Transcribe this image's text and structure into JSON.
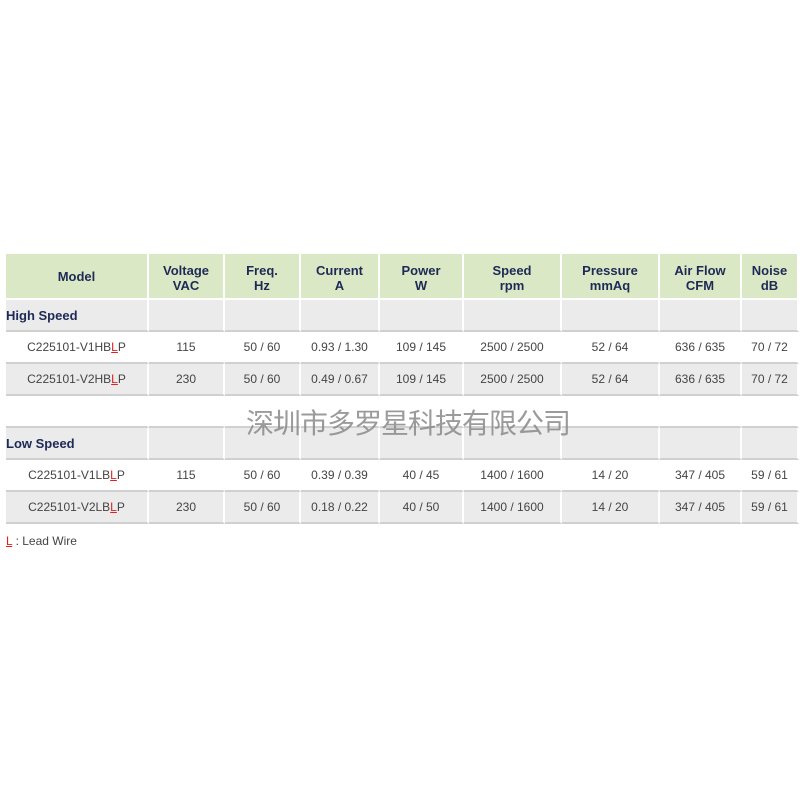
{
  "headers": [
    {
      "l1": "Model",
      "l2": ""
    },
    {
      "l1": "Voltage",
      "l2": "VAC"
    },
    {
      "l1": "Freq.",
      "l2": "Hz"
    },
    {
      "l1": "Current",
      "l2": "A"
    },
    {
      "l1": "Power",
      "l2": "W"
    },
    {
      "l1": "Speed",
      "l2": "rpm"
    },
    {
      "l1": "Pressure",
      "l2": "mmAq"
    },
    {
      "l1": "Air Flow",
      "l2": "CFM"
    },
    {
      "l1": "Noise",
      "l2": "dB"
    }
  ],
  "groups": [
    {
      "label": "High Speed",
      "rows": [
        {
          "model_pre": "C225101-V1HB",
          "model_l": "L",
          "model_post": "P",
          "cells": [
            "115",
            "50 / 60",
            "0.93 / 1.30",
            "109 / 145",
            "2500 / 2500",
            "52 / 64",
            "636 / 635",
            "70 / 72"
          ]
        },
        {
          "model_pre": "C225101-V2HB",
          "model_l": "L",
          "model_post": "P",
          "cells": [
            "230",
            "50 / 60",
            "0.49 / 0.67",
            "109 / 145",
            "2500 / 2500",
            "52 / 64",
            "636 / 635",
            "70 / 72"
          ]
        }
      ]
    },
    {
      "label": "Low Speed",
      "rows": [
        {
          "model_pre": "C225101-V1LB",
          "model_l": "L",
          "model_post": "P",
          "cells": [
            "115",
            "50 / 60",
            "0.39 / 0.39",
            "40 / 45",
            "1400 / 1600",
            "14 / 20",
            "347 / 405",
            "59 / 61"
          ]
        },
        {
          "model_pre": "C225101-V2LB",
          "model_l": "L",
          "model_post": "P",
          "cells": [
            "230",
            "50 / 60",
            "0.18 / 0.22",
            "40 / 50",
            "1400 / 1600",
            "14 / 20",
            "347 / 405",
            "59 / 61"
          ]
        }
      ]
    }
  ],
  "legend": {
    "key": "L",
    "text": " : Lead Wire"
  },
  "watermark": "深圳市多罗星科技有限公司",
  "colors": {
    "header_bg": "#dbe8c5",
    "header_text": "#1e2a56",
    "highlight": "#e02020"
  }
}
